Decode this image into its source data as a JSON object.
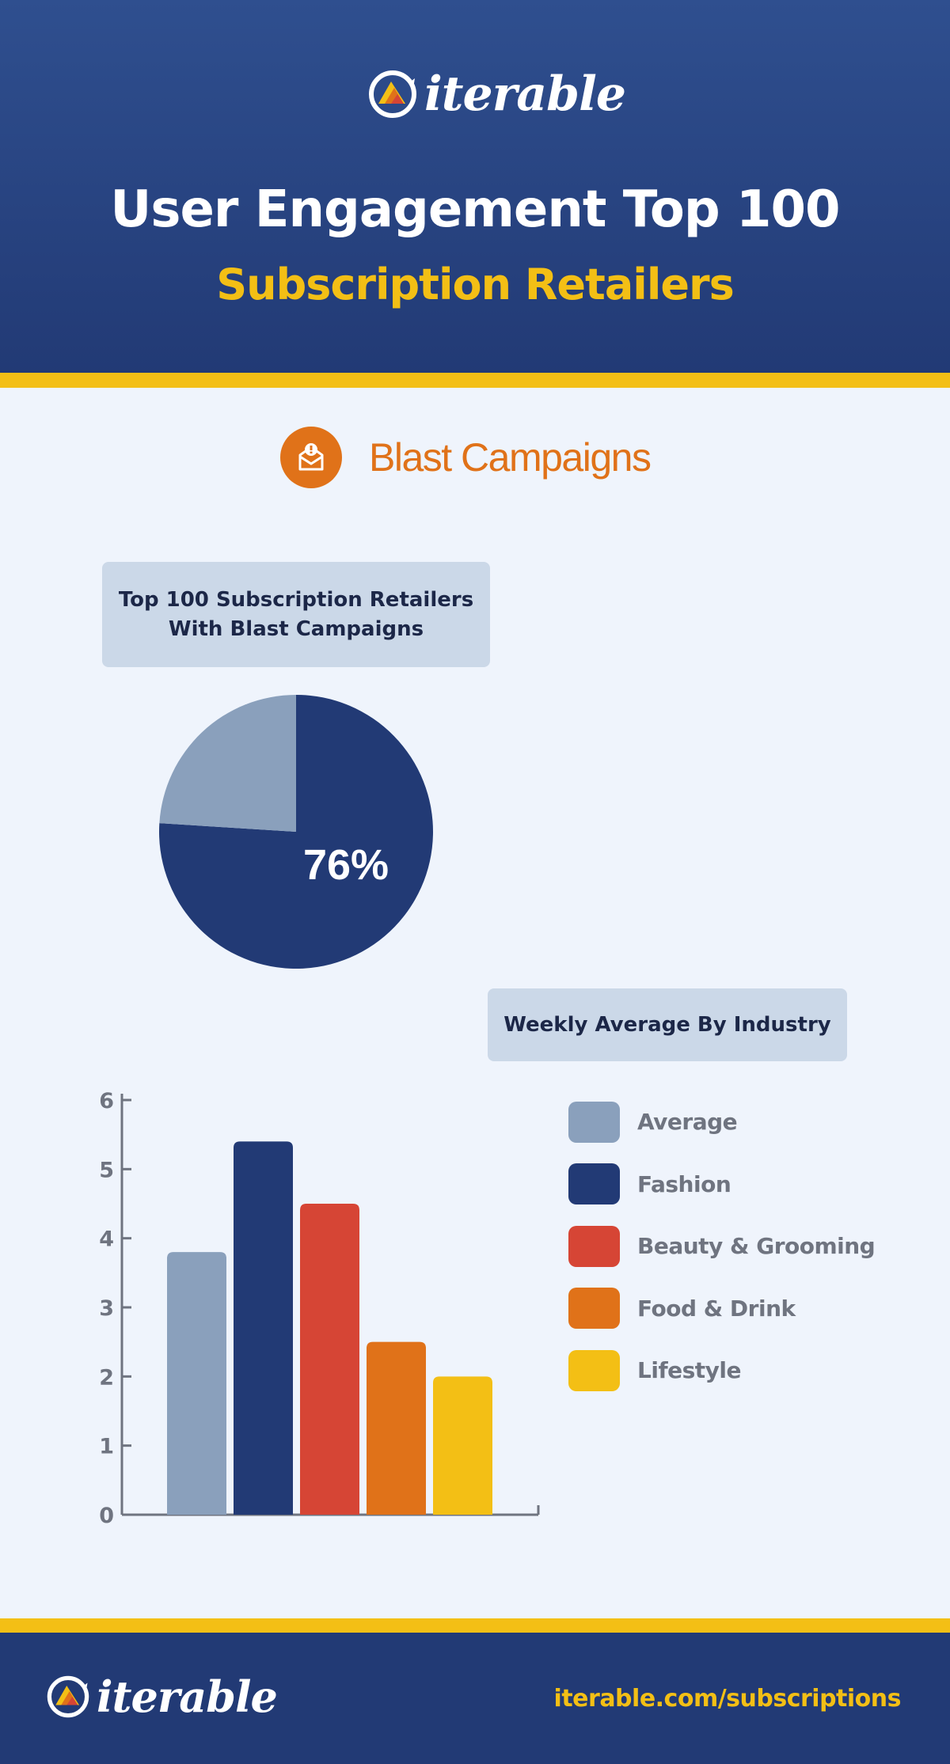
{
  "header": {
    "logo_text": "iterable",
    "title": "User Engagement Top 100",
    "subtitle": "Subscription Retailers"
  },
  "section": {
    "icon": "envelope-alert-icon",
    "heading": "Blast Campaigns"
  },
  "colors": {
    "navy": "#223a75",
    "yellow": "#f3bf15",
    "orange": "#e07219",
    "red": "#d64535",
    "slate": "#8aa0bc"
  },
  "chart_data": [
    {
      "type": "pie",
      "title_lines": [
        "Top 100 Subscription Retailers",
        "With Blast Campaigns"
      ],
      "slices": [
        {
          "value": 76,
          "color": "#223a75"
        },
        {
          "value": 24,
          "color": "#8aa0bc"
        }
      ],
      "center_label": "76%"
    },
    {
      "type": "bar",
      "title": "Weekly Average By Industry",
      "categories": [
        "Average",
        "Fashion",
        "Beauty & Grooming",
        "Food & Drink",
        "Lifestyle"
      ],
      "values": [
        3.8,
        5.4,
        4.5,
        2.5,
        2.0
      ],
      "colors": [
        "#8aa0bc",
        "#223a75",
        "#d64535",
        "#e07219",
        "#f3bf15"
      ],
      "ylim": [
        0,
        6
      ],
      "yticks": [
        "0",
        "1",
        "2",
        "3",
        "4",
        "5",
        "6"
      ],
      "legend_position": "right"
    }
  ],
  "footer": {
    "logo_text": "iterable",
    "url": "iterable.com/subscriptions"
  }
}
